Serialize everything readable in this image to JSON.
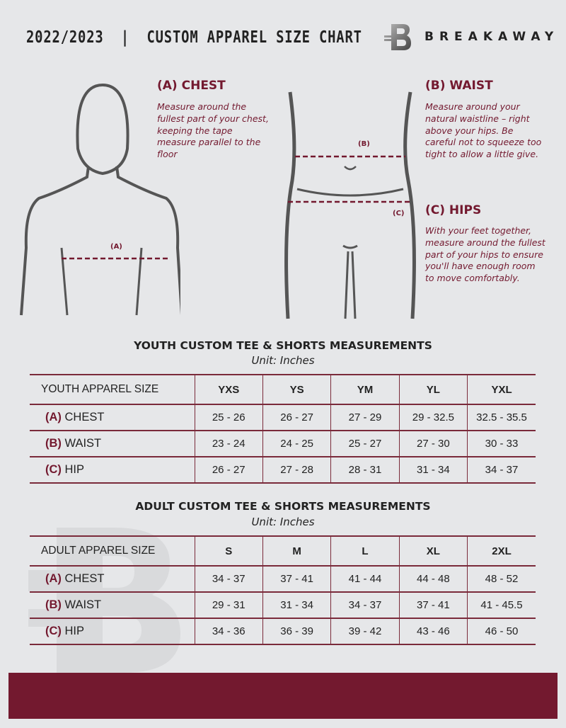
{
  "header": {
    "title": "2022/2023  |  CUSTOM APPAREL SIZE CHART",
    "brand": "BREAKAWAY",
    "logo_letter": "B"
  },
  "chest": {
    "heading": "(A) CHEST",
    "text": "Measure around the fullest part of your chest, keeping the tape measure parallel to the floor",
    "marker": "(A)"
  },
  "waist": {
    "heading": "(B) WAIST",
    "text": "Measure around your natural waistline – right above your hips. Be careful not to squeeze too tight to allow a little give.",
    "marker": "(B)"
  },
  "hips": {
    "heading": "(C) HIPS",
    "text": "With your feet together, measure around the fullest part of your hips to ensure you'll have enough room to move comfortably.",
    "marker": "(C)"
  },
  "colors": {
    "accent": "#73192f",
    "background": "#e6e7e9"
  },
  "youth": {
    "title": "YOUTH CUSTOM TEE & SHORTS MEASUREMENTS",
    "unit": "Unit: Inches",
    "header": "YOUTH APPAREL SIZE",
    "sizes": [
      "YXS",
      "YS",
      "YM",
      "YL",
      "YXL"
    ],
    "rows": [
      {
        "letter": "(A)",
        "label": "CHEST",
        "values": [
          "25 - 26",
          "26 - 27",
          "27 - 29",
          "29 - 32.5",
          "32.5 - 35.5"
        ]
      },
      {
        "letter": "(B)",
        "label": "WAIST",
        "values": [
          "23 - 24",
          "24 - 25",
          "25 - 27",
          "27 - 30",
          "30 - 33"
        ]
      },
      {
        "letter": "(C)",
        "label": "HIP",
        "values": [
          "26 - 27",
          "27 - 28",
          "28 - 31",
          "31 - 34",
          "34 - 37"
        ]
      }
    ]
  },
  "adult": {
    "title": "ADULT CUSTOM TEE & SHORTS MEASUREMENTS",
    "unit": "Unit: Inches",
    "header": "ADULT APPAREL SIZE",
    "sizes": [
      "S",
      "M",
      "L",
      "XL",
      "2XL"
    ],
    "rows": [
      {
        "letter": "(A)",
        "label": "CHEST",
        "values": [
          "34 - 37",
          "37 - 41",
          "41 - 44",
          "44 - 48",
          "48 - 52"
        ]
      },
      {
        "letter": "(B)",
        "label": "WAIST",
        "values": [
          "29 - 31",
          "31 - 34",
          "34 - 37",
          "37 - 41",
          "41 - 45.5"
        ]
      },
      {
        "letter": "(C)",
        "label": "HIP",
        "values": [
          "34 - 36",
          "36 - 39",
          "39 - 42",
          "43 - 46",
          "46 - 50"
        ]
      }
    ]
  }
}
